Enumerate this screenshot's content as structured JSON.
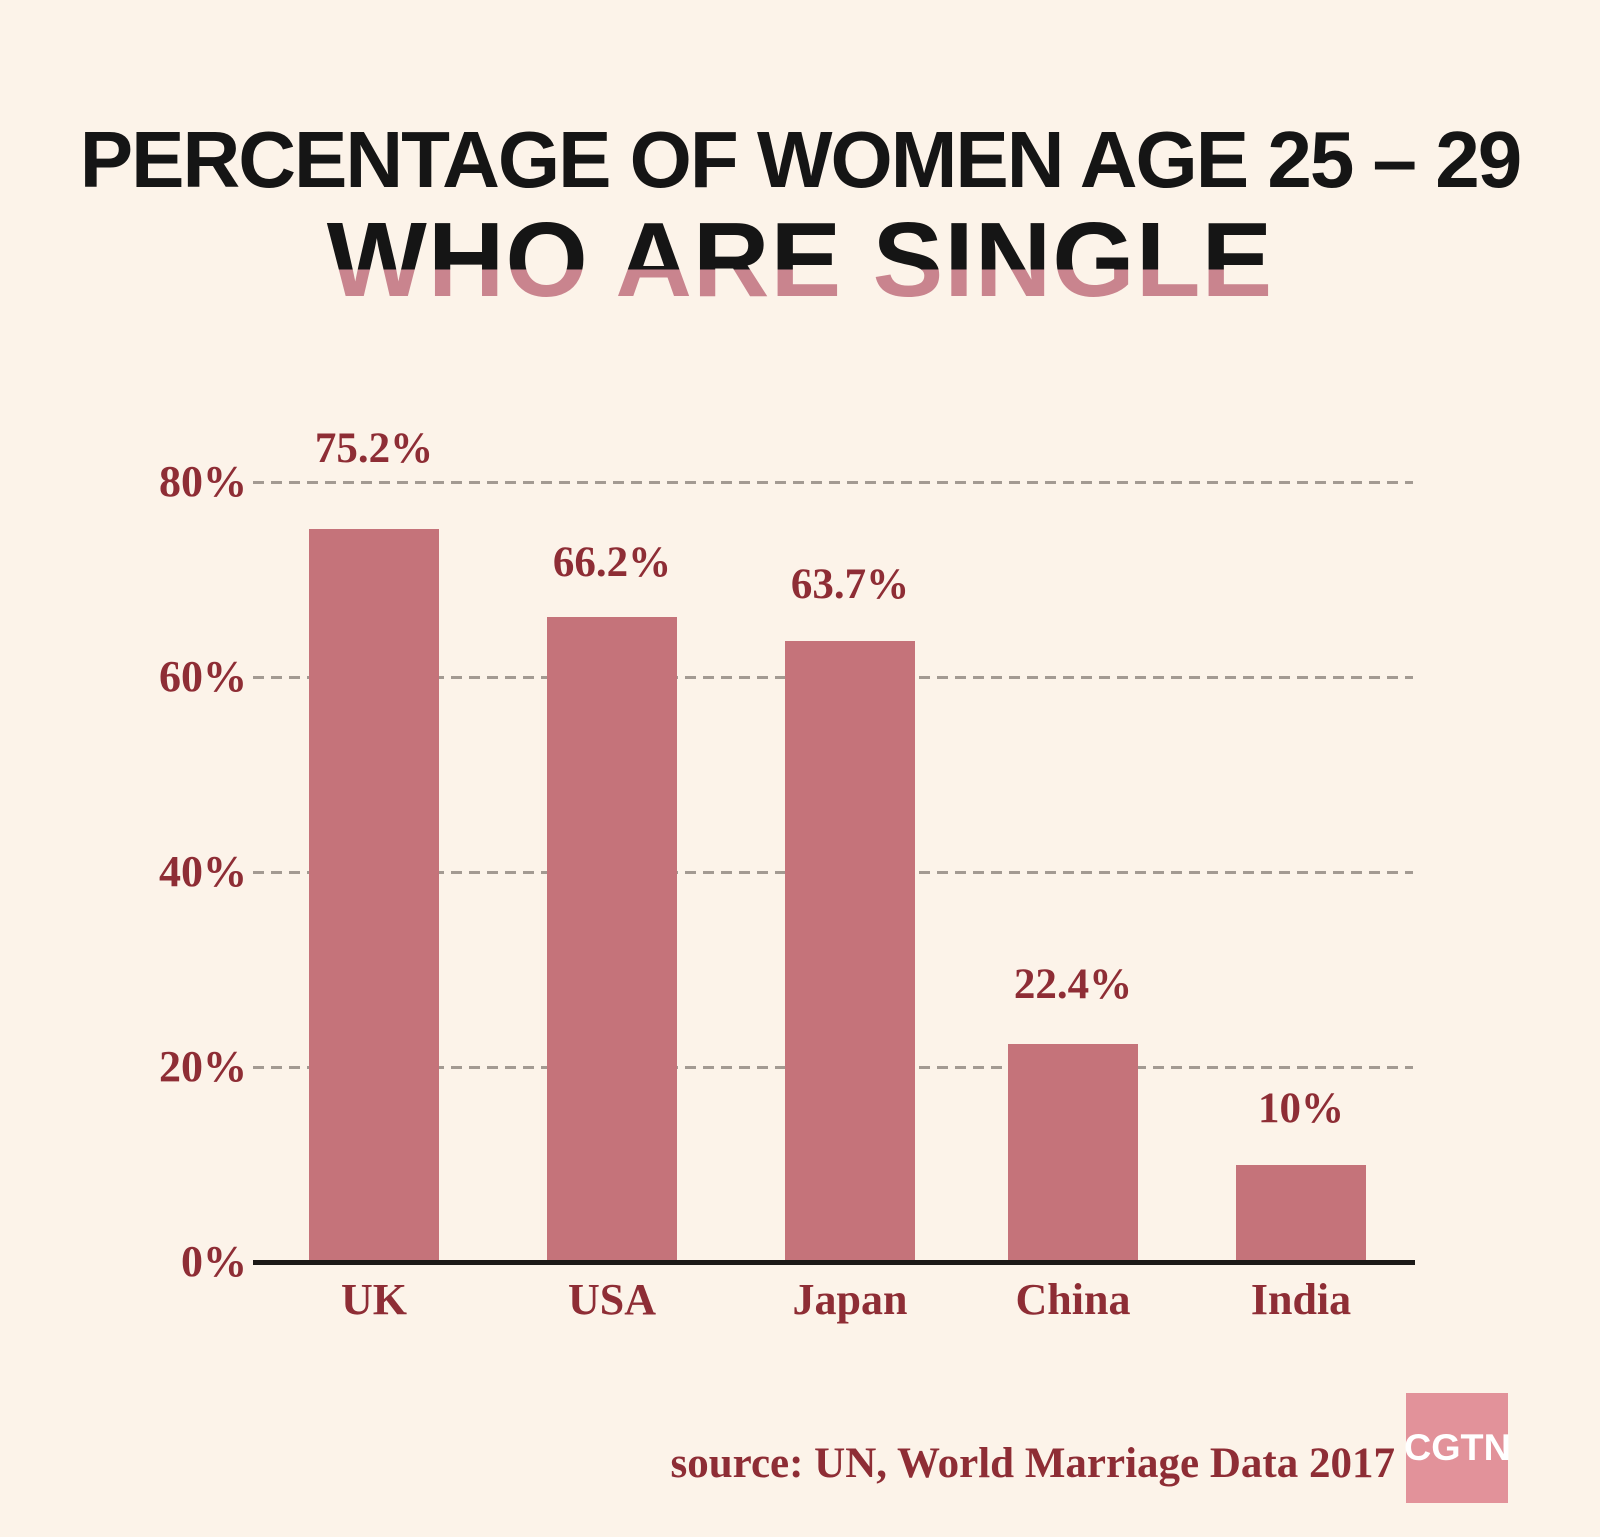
{
  "title": {
    "line1": "PERCENTAGE OF WOMEN AGE 25 – 29",
    "line2": "WHO ARE SINGLE"
  },
  "chart_data": {
    "type": "bar",
    "title": "Percentage of women age 25 – 29 who are single",
    "categories": [
      "UK",
      "USA",
      "Japan",
      "China",
      "India"
    ],
    "values": [
      75.2,
      66.2,
      63.7,
      22.4,
      10
    ],
    "value_labels": [
      "75.2%",
      "66.2%",
      "63.7%",
      "22.4%",
      "10%"
    ],
    "xlabel": "",
    "ylabel": "",
    "ylim": [
      0,
      80
    ],
    "yticks": [
      0,
      20,
      40,
      60,
      80
    ],
    "ytick_labels": [
      "0%",
      "20%",
      "40%",
      "60%",
      "80%"
    ],
    "grid": "horizontal dashed",
    "legend": "none",
    "bar_color": "#c5737a"
  },
  "source": {
    "label": "source: UN, World Marriage Data 2017"
  },
  "logo": {
    "text": "CGTN"
  },
  "colors": {
    "background": "#fcf3e9",
    "bar": "#c5737a",
    "title_black": "#151515",
    "title_pink": "#c9848e",
    "label_maroon": "#8e2d35",
    "gridline": "#a39a92",
    "axis": "#1c1917",
    "logo_bg": "#e2929a",
    "logo_text": "#ffffff"
  }
}
